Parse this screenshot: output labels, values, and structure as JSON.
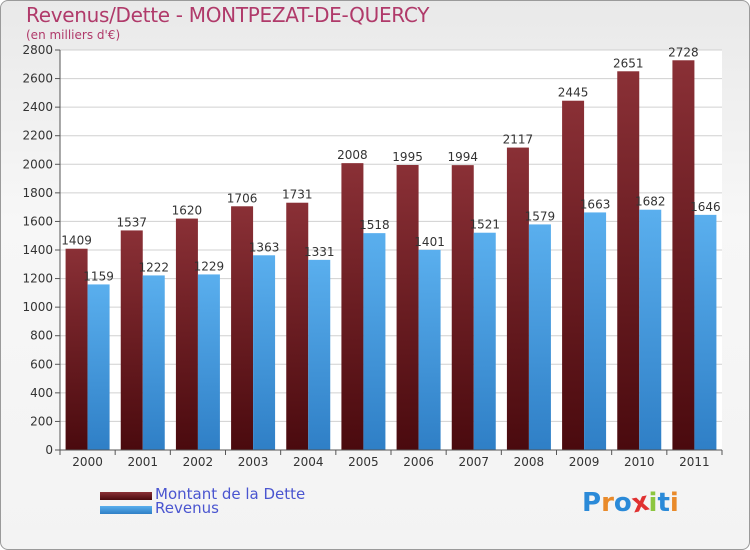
{
  "title": "Revenus/Dette - MONTPEZAT-DE-QUERCY",
  "subtitle": "(en milliers d'€)",
  "logo": {
    "text": "Proxiti",
    "letters": [
      "P",
      "r",
      "o",
      "x",
      "i",
      "t",
      "i"
    ],
    "colors": [
      "#2b8ad8",
      "#e98a2a",
      "#2b8ad8",
      "#e03131",
      "#8cc63f",
      "#2b8ad8",
      "#e98a2a"
    ]
  },
  "colors": {
    "dette": "#7a1d22",
    "revenus": "#4aa3e6",
    "axis": "#555555",
    "grid": "#d0d0d0"
  },
  "chart_data": {
    "type": "bar",
    "categories": [
      "2000",
      "2001",
      "2002",
      "2003",
      "2004",
      "2005",
      "2006",
      "2007",
      "2008",
      "2009",
      "2010",
      "2011"
    ],
    "series": [
      {
        "name": "Montant de la Dette",
        "values": [
          1409,
          1537,
          1620,
          1706,
          1731,
          2008,
          1995,
          1994,
          2117,
          2445,
          2651,
          2728
        ]
      },
      {
        "name": "Revenus",
        "values": [
          1159,
          1222,
          1229,
          1363,
          1331,
          1518,
          1401,
          1521,
          1579,
          1663,
          1682,
          1646
        ]
      }
    ],
    "ylim": [
      0,
      2800
    ],
    "yticks": [
      0,
      200,
      400,
      600,
      800,
      1000,
      1200,
      1400,
      1600,
      1800,
      2000,
      2200,
      2400,
      2600,
      2800
    ],
    "grid": true,
    "legend": "bottom-left"
  }
}
